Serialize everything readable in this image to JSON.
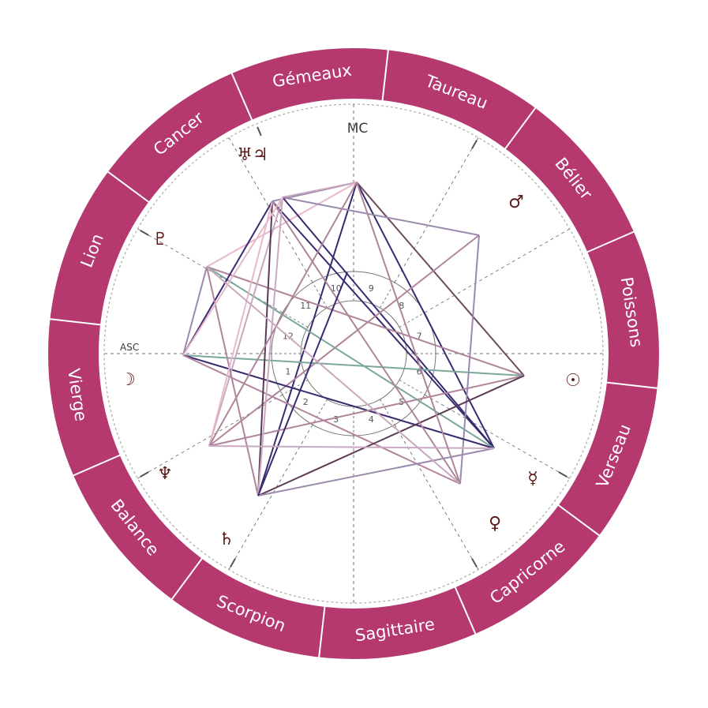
{
  "colors": {
    "ring": "#b5386f",
    "ring_divider": "#ffffff",
    "background": "#ffffff",
    "planet_glyph": "#5a1a1a",
    "dashed": "#777777",
    "inner_circle": "#777777"
  },
  "signs": [
    "Gémeaux",
    "Taureau",
    "Bélier",
    "Poissons",
    "Verseau",
    "Capricorne",
    "Sagittaire",
    "Scorpion",
    "Balance",
    "Vierge",
    "Lion",
    "Cancer"
  ],
  "axis_labels": {
    "mc": "MC",
    "asc": "ASC"
  },
  "houses": [
    "10",
    "9",
    "8",
    "7",
    "6",
    "5",
    "4",
    "3",
    "2",
    "1",
    "12",
    "11"
  ],
  "planets": [
    {
      "name": "uranus-jupiter",
      "glyph": "♅♃"
    },
    {
      "name": "pluto",
      "glyph": "♇"
    },
    {
      "name": "moon",
      "glyph": "☽"
    },
    {
      "name": "neptune",
      "glyph": "♆"
    },
    {
      "name": "saturn",
      "glyph": "♄"
    },
    {
      "name": "mars",
      "glyph": "♂"
    },
    {
      "name": "sun",
      "glyph": "☉"
    },
    {
      "name": "mercury",
      "glyph": "☿"
    },
    {
      "name": "venus",
      "glyph": "♀"
    }
  ]
}
